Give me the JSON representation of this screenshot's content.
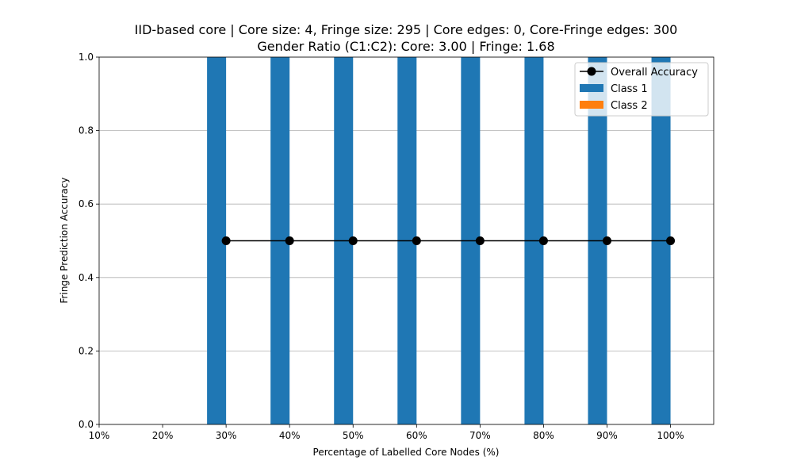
{
  "chart_data": {
    "type": "bar",
    "title_lines": [
      "IID-based core | Core size: 4, Fringe size: 295 | Core edges: 0, Core-Fringe edges: 300",
      "Gender Ratio (C1:C2): Core: 3.00 | Fringe: 1.68"
    ],
    "xlabel": "Percentage of Labelled Core Nodes (%)",
    "ylabel": "Fringe Prediction Accuracy",
    "x_ticks": [
      "10%",
      "20%",
      "30%",
      "40%",
      "50%",
      "60%",
      "70%",
      "80%",
      "90%",
      "100%"
    ],
    "x_values": [
      10,
      20,
      30,
      40,
      50,
      60,
      70,
      80,
      90,
      100
    ],
    "xlim": [
      10,
      106.8
    ],
    "ylim": [
      0,
      1.0
    ],
    "y_ticks": [
      "0.0",
      "0.2",
      "0.4",
      "0.6",
      "0.8",
      "1.0"
    ],
    "grid": "y-major",
    "legend_placement": "top-right",
    "series": [
      {
        "name": "Overall Accuracy",
        "kind": "line-marker",
        "color": "#000000",
        "x": [
          30,
          40,
          50,
          60,
          70,
          80,
          90,
          100
        ],
        "values": [
          0.5,
          0.5,
          0.5,
          0.5,
          0.5,
          0.5,
          0.5,
          0.5
        ]
      },
      {
        "name": "Class 1",
        "kind": "bar",
        "color": "#1f77b4",
        "x": [
          30,
          40,
          50,
          60,
          70,
          80,
          90,
          100
        ],
        "values": [
          1.0,
          1.0,
          1.0,
          1.0,
          1.0,
          1.0,
          1.0,
          1.0
        ]
      },
      {
        "name": "Class 2",
        "kind": "bar",
        "color": "#ff7f0e",
        "x": [
          30,
          40,
          50,
          60,
          70,
          80,
          90,
          100
        ],
        "values": [
          0.0,
          0.0,
          0.0,
          0.0,
          0.0,
          0.0,
          0.0,
          0.0
        ]
      }
    ]
  }
}
